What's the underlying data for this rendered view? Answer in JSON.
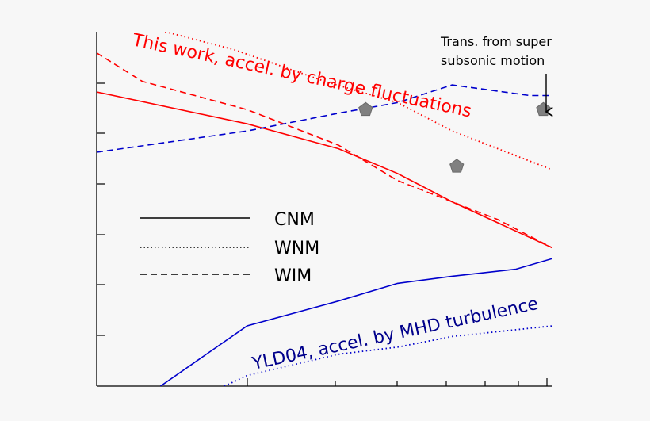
{
  "chart_data": {
    "type": "line",
    "title": "",
    "xlabel": "",
    "ylabel": "",
    "xlim": [
      0,
      100
    ],
    "ylim": [
      0,
      100
    ],
    "grid": false,
    "legend_position": "left",
    "legend": [
      {
        "label": "CNM",
        "style": "solid"
      },
      {
        "label": "WNM",
        "style": "dotted"
      },
      {
        "label": "WIM",
        "style": "dashed"
      }
    ],
    "series": [
      {
        "group": "this-work",
        "color": "#ff0000",
        "style": "solid",
        "x": [
          0,
          33,
          53,
          66,
          78,
          100
        ],
        "y": [
          83,
          74,
          67,
          60,
          52,
          39
        ]
      },
      {
        "group": "this-work",
        "color": "#ff0000",
        "style": "dashed",
        "x": [
          0,
          10,
          33,
          53,
          66,
          88,
          100
        ],
        "y": [
          94,
          86,
          78,
          68,
          58,
          47,
          39
        ]
      },
      {
        "group": "this-work",
        "color": "#ff0000",
        "style": "dotted",
        "x": [
          15,
          30,
          50,
          66,
          78,
          100
        ],
        "y": [
          100,
          95,
          86,
          80,
          72,
          61
        ]
      },
      {
        "group": "yld04",
        "color": "#0000cc",
        "style": "solid",
        "x": [
          14,
          33,
          53,
          66,
          78,
          92,
          100
        ],
        "y": [
          0,
          17,
          24,
          29,
          31,
          33,
          36
        ]
      },
      {
        "group": "yld04",
        "color": "#0000cc",
        "style": "dotted",
        "x": [
          28,
          33,
          53,
          66,
          78,
          100
        ],
        "y": [
          0,
          3,
          9,
          11,
          14,
          17
        ]
      },
      {
        "group": "yld04",
        "color": "#0000cc",
        "style": "dashed",
        "x": [
          0,
          33,
          53,
          66,
          78,
          95,
          100
        ],
        "y": [
          66,
          72,
          77,
          80,
          85,
          82,
          82
        ]
      }
    ],
    "markers": [
      {
        "x": 59,
        "y": 78
      },
      {
        "x": 79,
        "y": 62
      },
      {
        "x": 98,
        "y": 78
      }
    ],
    "annotations": {
      "this_work": "This work, accel. by charge fluctuations",
      "yld04": "YLD04, accel. by MHD turbulence",
      "transition_line1": "Trans. from super to",
      "transition_line2": "subsonic motion"
    },
    "colors": {
      "this_work": "#ff0000",
      "yld04": "#00008b",
      "marker": "#808080"
    }
  }
}
